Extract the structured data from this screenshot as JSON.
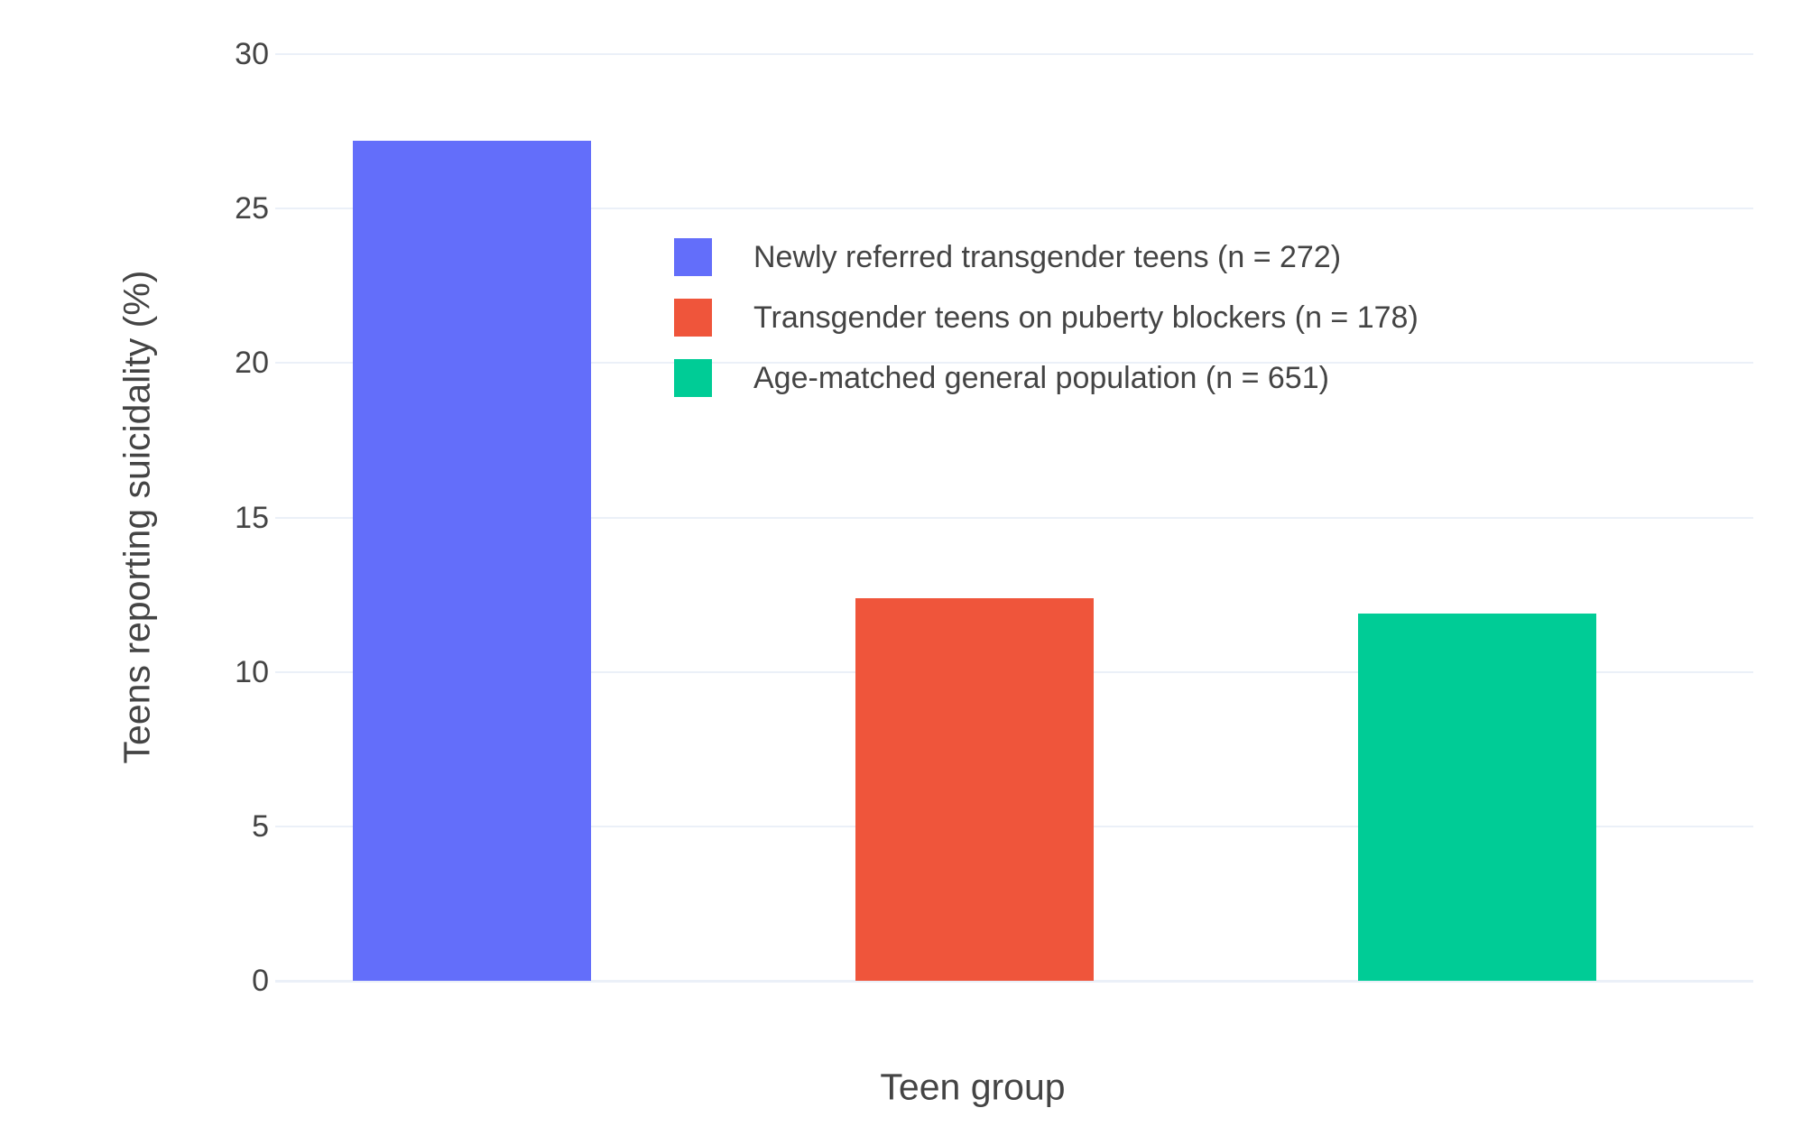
{
  "colors": {
    "background": "#ffffff",
    "text": "#444444",
    "grid": "#ebf0f8"
  },
  "chart_data": {
    "type": "bar",
    "title": "",
    "xlabel": "Teen group",
    "ylabel": "Teens reporting suicidality (%)",
    "ylim": [
      0,
      30
    ],
    "yticks": [
      0,
      5,
      10,
      15,
      20,
      25,
      30
    ],
    "grid": true,
    "legend_position": "inside-top-right",
    "bars": [
      {
        "label": "Newly referred transgender teens (n = 272)",
        "value": 27.2,
        "color": "#636efa"
      },
      {
        "label": "Transgender teens on puberty blockers (n = 178)",
        "value": 12.4,
        "color": "#ef553b"
      },
      {
        "label": "Age-matched general population (n = 651)",
        "value": 11.9,
        "color": "#00cc96"
      }
    ]
  }
}
